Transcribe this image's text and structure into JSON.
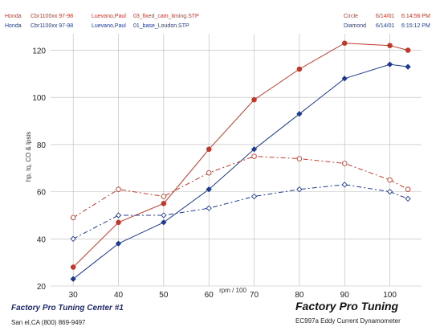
{
  "header": {
    "rows": [
      {
        "make": "Honda",
        "model": "Cbr1100xx 97-98",
        "owner": "Luevano,Paul",
        "file": "03_fixed_cam_timing.STP",
        "marker": "Circle",
        "date": "6/14/01",
        "time": "6:14:56 PM",
        "color": "#c0392b"
      },
      {
        "make": "Honda",
        "model": "Cbr1100xx 97-98",
        "owner": "Luevano,Paul",
        "file": "01_base_Loudon.STP",
        "marker": "Diamond",
        "date": "6/14/01",
        "time": "6:15:12 PM",
        "color": "#1f3b8f"
      }
    ]
  },
  "footer": {
    "left_title": "Factory Pro Tuning Center #1",
    "left_contact": "San        el,CA     (800) 869-9497",
    "right_title": "Factory Pro Tuning",
    "right_sub": "EC997a  Eddy Current Dynamometer"
  },
  "chart_data": {
    "type": "line",
    "xlabel": "rpm / 100",
    "ylabel": "hp, tq, CO & lpsis",
    "xlim": [
      25,
      107
    ],
    "ylim": [
      20,
      127
    ],
    "xticks": [
      30,
      40,
      50,
      60,
      70,
      80,
      90,
      100
    ],
    "yticks": [
      20,
      40,
      60,
      80,
      100,
      120
    ],
    "grid": true,
    "series": [
      {
        "name": "Circle",
        "kind": "hp",
        "dash": false,
        "color": "#c0392b",
        "marker": "circle",
        "x": [
          30,
          40,
          50,
          60,
          70,
          80,
          90,
          100,
          104
        ],
        "y": [
          28,
          47,
          55,
          78,
          99,
          112,
          123,
          122,
          120
        ]
      },
      {
        "name": "Diamond",
        "kind": "hp",
        "dash": false,
        "color": "#1f3b8f",
        "marker": "diamond",
        "x": [
          30,
          40,
          50,
          60,
          70,
          80,
          90,
          100,
          104
        ],
        "y": [
          23,
          38,
          47,
          61,
          78,
          93,
          108,
          114,
          113
        ]
      },
      {
        "name": "Circle",
        "kind": "tq",
        "dash": true,
        "color": "#c0392b",
        "marker": "circle-open",
        "x": [
          30,
          40,
          50,
          60,
          70,
          80,
          90,
          100,
          104
        ],
        "y": [
          49,
          61,
          58,
          68,
          75,
          74,
          72,
          65,
          61
        ]
      },
      {
        "name": "Diamond",
        "kind": "tq",
        "dash": true,
        "color": "#1f3b8f",
        "marker": "diamond-open",
        "x": [
          30,
          40,
          50,
          60,
          70,
          80,
          90,
          100,
          104
        ],
        "y": [
          40,
          50,
          50,
          53,
          58,
          61,
          63,
          60,
          57
        ]
      }
    ]
  }
}
